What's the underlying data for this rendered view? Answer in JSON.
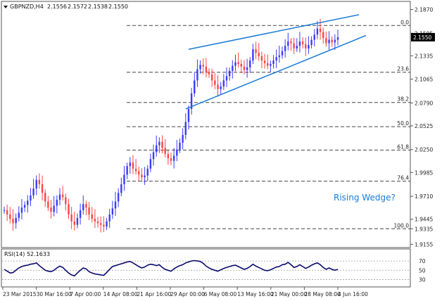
{
  "chart_data": {
    "type": "candlestick",
    "header": {
      "symbol": "GBPNZD,H4",
      "open": "2.1556",
      "high": "2.1572",
      "low": "2.1538",
      "close": "2.1550"
    },
    "price_axis": {
      "range": [
        1.915,
        2.185
      ],
      "ticks": [
        "2.1870",
        "2.1595",
        "2.1335",
        "2.1065",
        "2.0790",
        "2.0525",
        "2.0250",
        "1.9985",
        "1.9710",
        "1.9445",
        "1.9335",
        "1.9155"
      ],
      "current_price": "2.1550"
    },
    "time_axis": {
      "labels": [
        "23 Mar 2015",
        "30 Mar 16:00",
        "7 Apr 00:00",
        "14 Apr 08:00",
        "21 Apr 16:00",
        "29 Apr 00:00",
        "6 May 08:00",
        "13 May 16:00",
        "21 May 00:00",
        "28 May 08:00",
        "4 Jun 16:00"
      ]
    },
    "fib_levels": [
      {
        "label": "0.0",
        "price": 2.1685
      },
      {
        "label": "23.6",
        "price": 2.1145
      },
      {
        "label": "38.2",
        "price": 2.0795
      },
      {
        "label": "50.0",
        "price": 2.0515
      },
      {
        "label": "61.8",
        "price": 2.0245
      },
      {
        "label": "76.4",
        "price": 1.9885
      },
      {
        "label": "100.0",
        "price": 1.9335
      }
    ],
    "series": [
      {
        "values": [
          1.955,
          1.95,
          1.945,
          1.94,
          1.946,
          1.952,
          1.958,
          1.961,
          1.966,
          1.972,
          1.98,
          1.99,
          1.985,
          1.975,
          1.965,
          1.958,
          1.953,
          1.96,
          1.967,
          1.973,
          1.97,
          1.962,
          1.95,
          1.942,
          1.938,
          1.946,
          1.955,
          1.962,
          1.958,
          1.95,
          1.945,
          1.942,
          1.94,
          1.938,
          1.936,
          1.942,
          1.95,
          1.957,
          1.965,
          1.975,
          1.985,
          1.996,
          2.006,
          2.01,
          2.003,
          2.0,
          1.996,
          1.993,
          1.995,
          2.003,
          2.014,
          2.022,
          2.03,
          2.034,
          2.027,
          2.02,
          2.015,
          2.012,
          2.018,
          2.025,
          2.033,
          2.042,
          2.057,
          2.072,
          2.09,
          2.105,
          2.118,
          2.123,
          2.121,
          2.115,
          2.112,
          2.105,
          2.1,
          2.095,
          2.098,
          2.105,
          2.11,
          2.116,
          2.122,
          2.126,
          2.124,
          2.121,
          2.117,
          2.12,
          2.128,
          2.141,
          2.137,
          2.133,
          2.128,
          2.125,
          2.122,
          2.124,
          2.128,
          2.132,
          2.134,
          2.139,
          2.145,
          2.15,
          2.148,
          2.142,
          2.145,
          2.15,
          2.147,
          2.142,
          2.146,
          2.152,
          2.158,
          2.165,
          2.161,
          2.154,
          2.148,
          2.152,
          2.149,
          2.152,
          2.155
        ]
      }
    ],
    "annotations": {
      "pattern_label": "Rising Wedge?"
    },
    "indicator": {
      "label": "RSI(14) 52.1633",
      "levels": [
        "70",
        "50",
        "30"
      ],
      "values": [
        52,
        48,
        44,
        45,
        50,
        55,
        58,
        60,
        61,
        63,
        64,
        66,
        60,
        55,
        50,
        48,
        47,
        50,
        55,
        59,
        56,
        50,
        44,
        40,
        38,
        44,
        50,
        55,
        53,
        47,
        44,
        42,
        41,
        40,
        39,
        45,
        52,
        58,
        60,
        62,
        64,
        66,
        68,
        69,
        66,
        62,
        58,
        55,
        57,
        61,
        63,
        62,
        60,
        62,
        56,
        52,
        50,
        48,
        53,
        57,
        60,
        62,
        66,
        68,
        70,
        71,
        70,
        69,
        65,
        59,
        55,
        52,
        50,
        48,
        51,
        54,
        56,
        58,
        60,
        61,
        58,
        55,
        52,
        54,
        58,
        63,
        59,
        56,
        53,
        50,
        49,
        51,
        54,
        57,
        58,
        62,
        63,
        67,
        62,
        56,
        58,
        62,
        58,
        54,
        57,
        61,
        64,
        66,
        62,
        56,
        52,
        55,
        52,
        50,
        52
      ]
    },
    "colors": {
      "bull": "#3b3bff",
      "bear": "#ff4444",
      "trendline": "#1a7bd8",
      "fib": "#444444",
      "price_tag_bg": "#000000",
      "rsi_line": "#0a0a6e",
      "label": "#1a7bd8"
    }
  }
}
